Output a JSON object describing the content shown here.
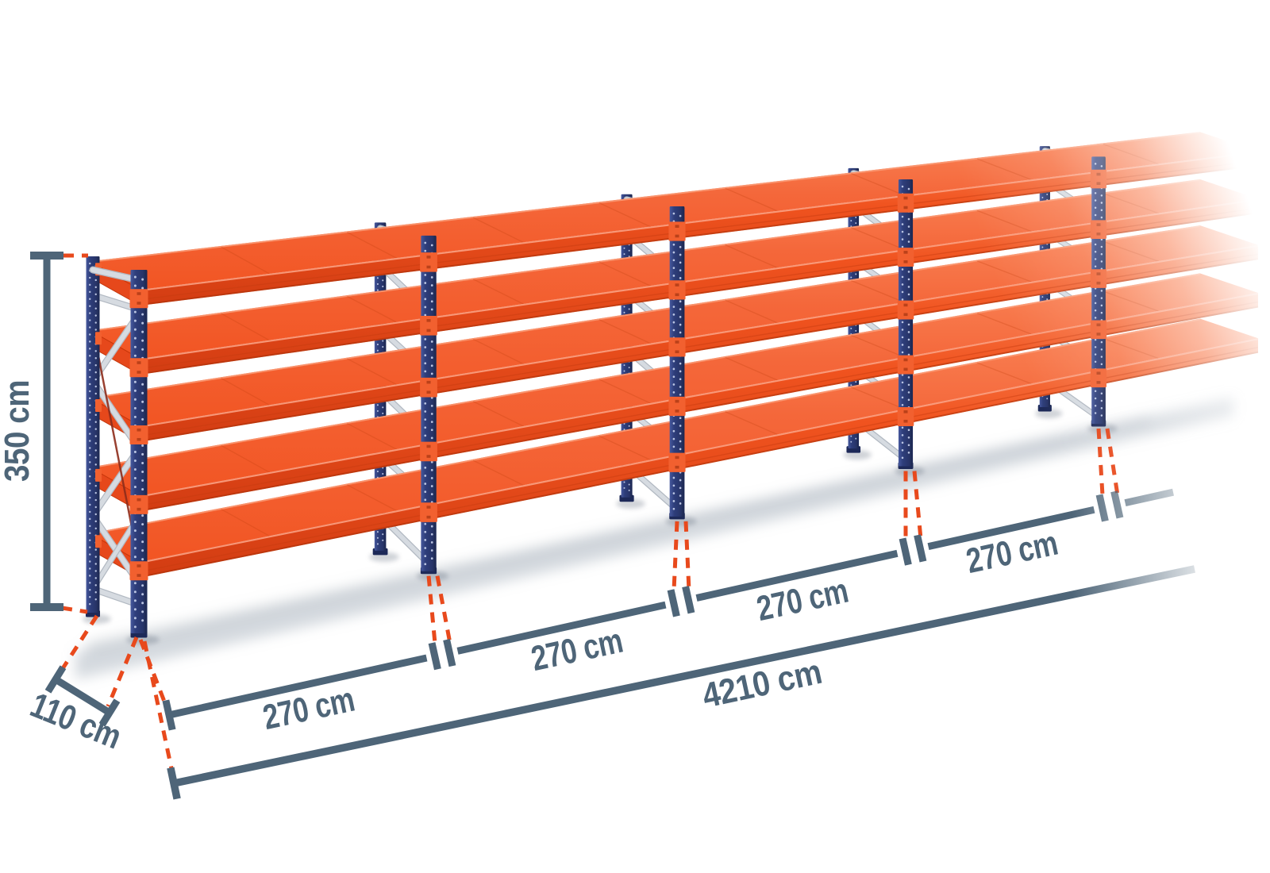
{
  "diagram": {
    "subject": "Long-span shelving / pallet racking run, isometric product illustration",
    "effects": "structure and dimension lines fade out toward the right edge"
  },
  "dimensions": {
    "height": {
      "label": "350 cm",
      "value_cm": 350,
      "placement": "vertical line at left side of first frame"
    },
    "depth": {
      "label": "110 cm",
      "value_cm": 110,
      "placement": "diagonal line at bottom-left, frame depth"
    },
    "bays": [
      {
        "label": "270 cm",
        "value_cm": 270
      },
      {
        "label": "270 cm",
        "value_cm": 270
      },
      {
        "label": "270 cm",
        "value_cm": 270
      },
      {
        "label": "270 cm",
        "value_cm": 270
      }
    ],
    "total": {
      "label": "4210 cm",
      "value_cm": 4210,
      "placement": "long chain dimension under the bay dimensions"
    }
  },
  "rack": {
    "shelf_levels": 5,
    "upright_frames": 5,
    "labeled_bays": 4
  },
  "colors": {
    "background": "#ffffff",
    "shelf_orange": "#f4561f",
    "shelf_orange_light": "#f97c50",
    "shelf_orange_dark": "#d8411a",
    "shelf_end_cap": "#e64314",
    "bracket_orange": "#f2602f",
    "upright_navy": "#2c3b74",
    "upright_navy_light": "#46589d",
    "upright_navy_dark": "#1d2958",
    "brace_silver": "#d6dbe1",
    "brace_silver_edge": "#b2b9c2",
    "brace_rod_red": "#8e2d1b",
    "perforation_dot": "#c9d3ee",
    "dimension_slate": "#4e6578",
    "leader_red": "#e8491c",
    "shadow_gray": "#97a2ae"
  }
}
